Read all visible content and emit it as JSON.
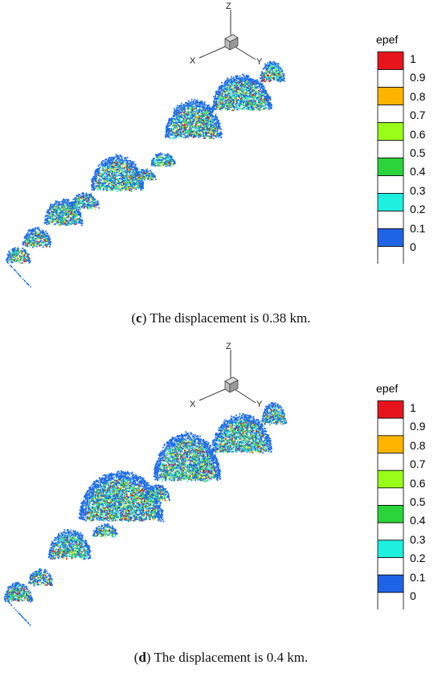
{
  "panels": [
    {
      "id": "c",
      "caption_letter": "c",
      "caption_text": "The displacement is 0.38 km.",
      "legend_title": "epef",
      "axis_labels": {
        "z": "Z",
        "x": "X",
        "y": "Y"
      }
    },
    {
      "id": "d",
      "caption_letter": "d",
      "caption_text": "The displacement is 0.4 km.",
      "legend_title": "epef",
      "axis_labels": {
        "z": "Z",
        "x": "X",
        "y": "Y"
      }
    }
  ],
  "legend": {
    "labels": [
      "1",
      "0.9",
      "0.8",
      "0.7",
      "0.6",
      "0.5",
      "0.4",
      "0.3",
      "0.2",
      "0.1",
      "0"
    ],
    "colors": [
      "#e8141c",
      "#ffffff",
      "#ffb400",
      "#ffffff",
      "#99ff19",
      "#ffffff",
      "#2ad43a",
      "#ffffff",
      "#1ef0e0",
      "#ffffff",
      "#1e64e6",
      "#ffffff"
    ]
  },
  "scene_colors": {
    "blue": "#1e6ee8",
    "cyan": "#28e6dc",
    "green": "#3cd23c",
    "yellow": "#d8e61e",
    "red": "#dc1e1e"
  }
}
